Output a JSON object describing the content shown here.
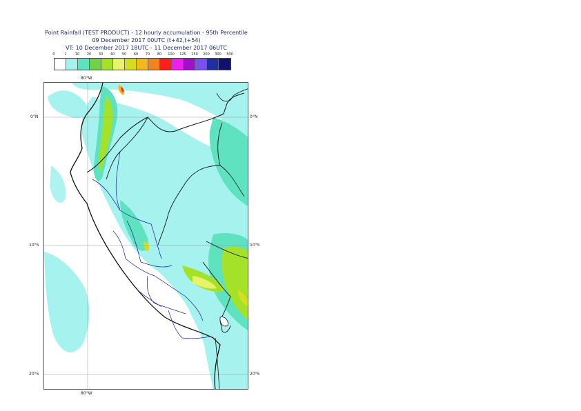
{
  "header": {
    "line1": "Point Rainfall (TEST PRODUCT) - 12 hourly accumulation - 95th Percentile",
    "line2": "09 December 2017 00UTC (t+42,t+54)",
    "line3": "VT: 10 December 2017 18UTC - 11 December 2017 06UTC"
  },
  "legend": {
    "labels": [
      "0",
      "1",
      "10",
      "20",
      "30",
      "40",
      "50",
      "60",
      "70",
      "80",
      "100",
      "125",
      "150",
      "200",
      "300",
      "500"
    ],
    "colors": [
      "#ffffff",
      "#a6f2ef",
      "#5ee2c0",
      "#6fd24a",
      "#a4e22a",
      "#e8f26a",
      "#d6dc1e",
      "#f2b81e",
      "#f2831e",
      "#ff1e1e",
      "#ee1eee",
      "#a010c8",
      "#7a50ee",
      "#2030a0",
      "#101070"
    ]
  },
  "map": {
    "lon_top": "80°W",
    "lon_bottom": "80°W",
    "lat_left": [
      "0°N",
      "10°S",
      "20°S"
    ],
    "lat_right": [
      "0°N",
      "10°S",
      "20°S"
    ]
  }
}
